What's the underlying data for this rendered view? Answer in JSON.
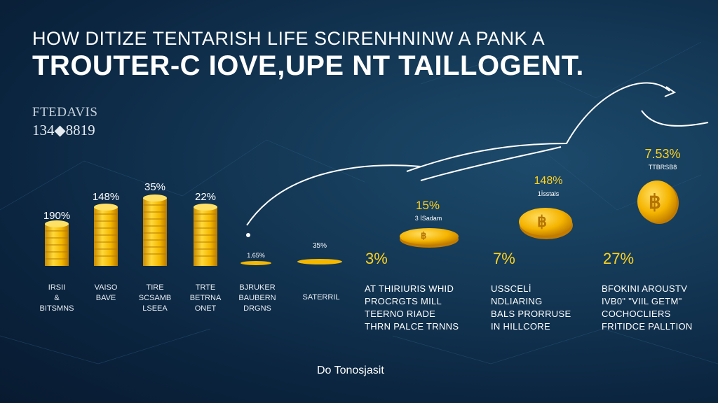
{
  "title": {
    "line1": "HOW DITIZE TENTARISH LIFE SCIRENHNINW A PANK A",
    "line2": "TROUTER-C IOVE,UPE NT TAILLOGENT."
  },
  "side_stat": {
    "label": "FTEDAVIS",
    "value": "134◆8819"
  },
  "stacks": [
    {
      "percent": "190%",
      "label": "IRSII\n&\nBITSMNS"
    },
    {
      "percent": "148%",
      "label": "VAISO\nBAVE"
    },
    {
      "percent": "35%",
      "label": "TIRE\nSCSAMB\nLSEEA"
    },
    {
      "percent": "22%",
      "label": "TRTE\nBETRNA\nONET"
    }
  ],
  "flat_coins": [
    {
      "percent": "1.65%",
      "label": "BJRUKER\nBAUBERN\nDRGNS"
    },
    {
      "percent": "35%",
      "label": "SATERRIL"
    }
  ],
  "big_coins": [
    {
      "percent": "15%",
      "sublabel": "3 İSadam",
      "coin_symbol": "฿"
    },
    {
      "percent": "148%",
      "sublabel": "1İsstals",
      "coin_symbol": "฿"
    },
    {
      "percent": "7.53%",
      "sublabel": "TTBRSB8",
      "coin_symbol": "฿"
    }
  ],
  "highlights": [
    {
      "percent": "3%",
      "text": "AT THIRIURIS WHID\nPROCRGTS MILL\nTEERNO RIADE\nTHRN PALCE TRNNS"
    },
    {
      "percent": "7%",
      "text": "USSCELİ\nNDLIARING\nBALS PRORRUSE\nIN HILLCORE"
    },
    {
      "percent": "27%",
      "text": "BFOKINI AROUSTV\nIVB0\" \"VIIL GETM\"\nCOCHOCLIERS\nFRITIDCE PALLTION"
    }
  ],
  "footer": "Do Tonosjasit",
  "colors": {
    "coin_gold": "#f7c21a",
    "accent_yellow": "#ffd21f",
    "background": "#0b2540"
  }
}
